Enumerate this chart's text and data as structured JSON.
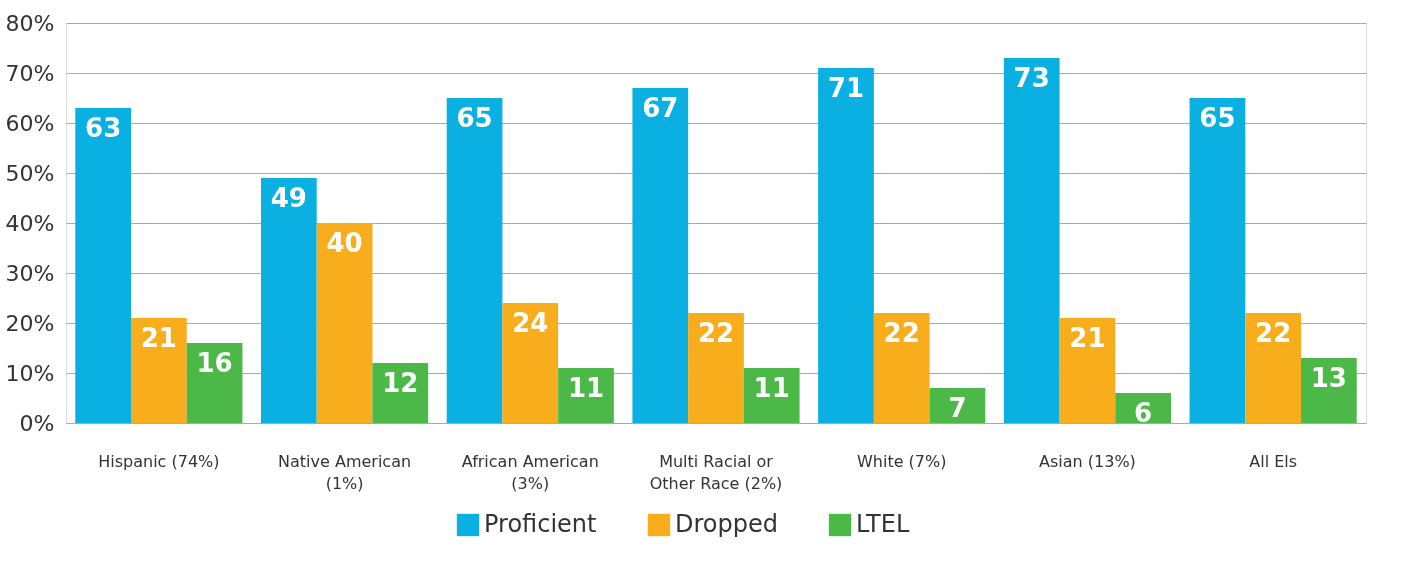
{
  "chart_data": {
    "type": "bar",
    "categories": [
      "Hispanic (74%)",
      "Native American (1%)",
      "African American (3%)",
      "Multi Racial or Other Race (2%)",
      "White (7%)",
      "Asian (13%)",
      "All Els"
    ],
    "series": [
      {
        "name": "Proficient",
        "color": "#0ab0e2",
        "values": [
          63,
          49,
          65,
          67,
          71,
          73,
          65
        ]
      },
      {
        "name": "Dropped",
        "color": "#f8ad1c",
        "values": [
          21,
          40,
          24,
          22,
          22,
          21,
          22
        ]
      },
      {
        "name": "LTEL",
        "color": "#4cb848",
        "values": [
          16,
          12,
          11,
          11,
          7,
          6,
          13
        ]
      }
    ],
    "ylim": [
      0,
      80
    ],
    "yticks": [
      {
        "value": 0,
        "label": "0%"
      },
      {
        "value": 10,
        "label": "10%"
      },
      {
        "value": 20,
        "label": "20%"
      },
      {
        "value": 30,
        "label": "30%"
      },
      {
        "value": 40,
        "label": "40%"
      },
      {
        "value": 50,
        "label": "50%"
      },
      {
        "value": 60,
        "label": "60%"
      },
      {
        "value": 70,
        "label": "70%"
      },
      {
        "value": 80,
        "label": "80%"
      }
    ],
    "grid": "y",
    "legend": "bottom",
    "data_labels": true
  }
}
